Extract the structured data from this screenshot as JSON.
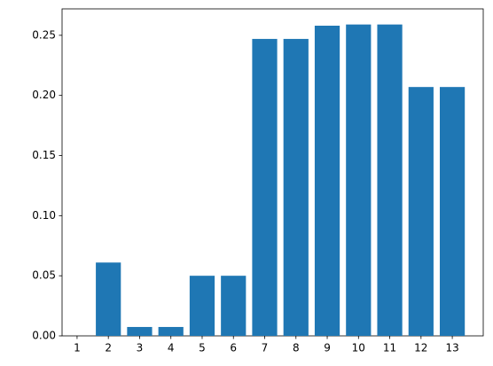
{
  "chart_data": {
    "type": "bar",
    "x": [
      1,
      2,
      3,
      4,
      5,
      6,
      7,
      8,
      9,
      10,
      11,
      12,
      13
    ],
    "values": [
      0,
      0.061,
      0.0074,
      0.0074,
      0.05,
      0.05,
      0.247,
      0.247,
      0.258,
      0.259,
      0.259,
      0.207,
      0.207
    ],
    "color": "#1f77b4",
    "xlim": [
      0.52,
      13.99
    ],
    "xticks": [
      1,
      2,
      3,
      4,
      5,
      6,
      7,
      8,
      9,
      10,
      11,
      12,
      13
    ],
    "ylim": [
      0,
      0.272
    ],
    "yticks": [
      {
        "value": 0,
        "label": "0.00"
      },
      {
        "value": 0.05,
        "label": "0.05"
      },
      {
        "value": 0.1,
        "label": "0.10"
      },
      {
        "value": 0.15,
        "label": "0.15"
      },
      {
        "value": 0.2,
        "label": "0.20"
      },
      {
        "value": 0.25,
        "label": "0.25"
      }
    ],
    "grid": false
  }
}
